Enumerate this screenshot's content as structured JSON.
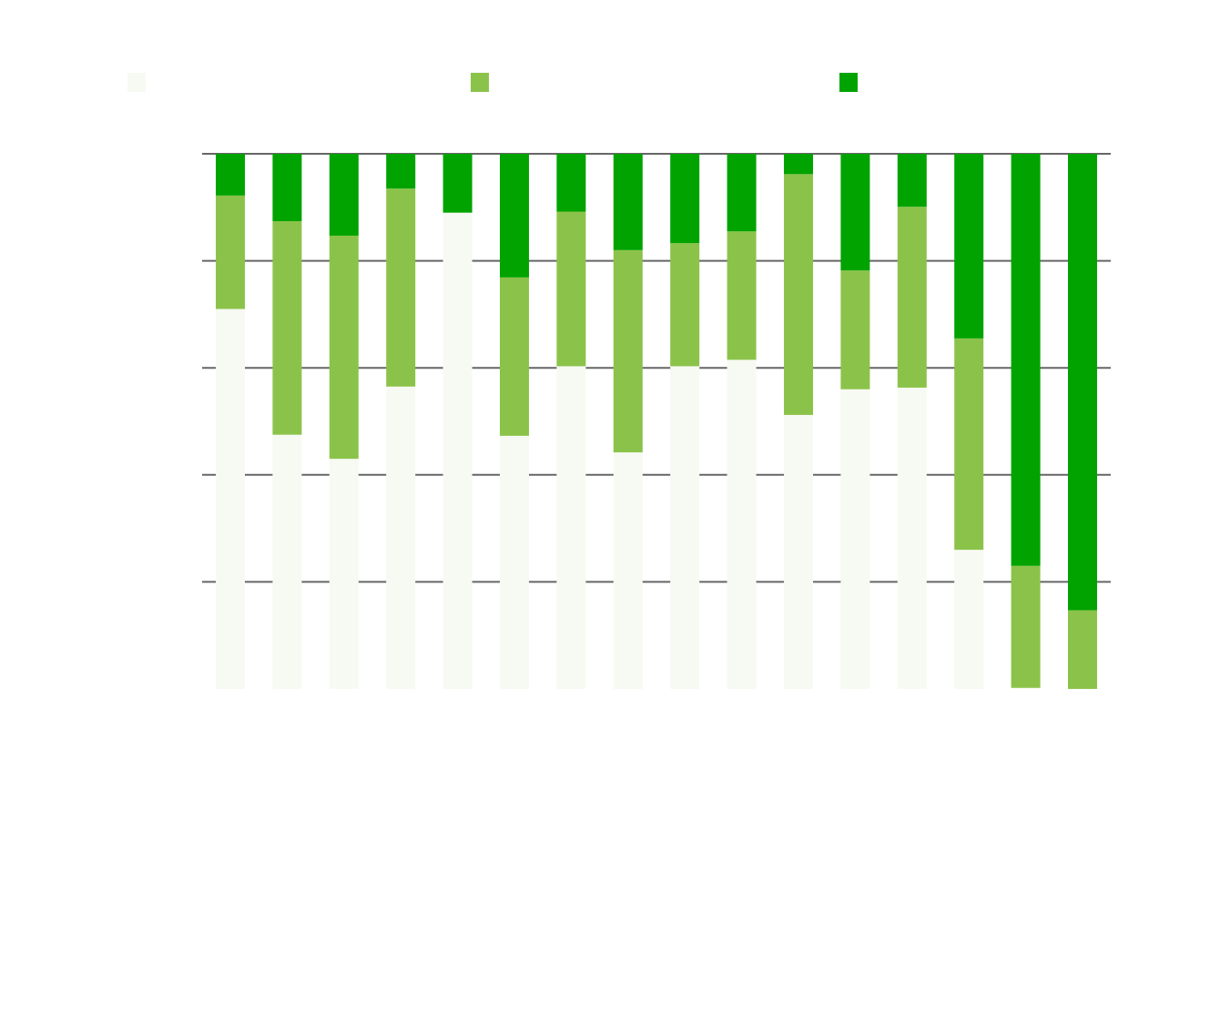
{
  "chart_data": {
    "type": "bar",
    "stacked": true,
    "normalized_to_percent": true,
    "title": "",
    "xlabel": "",
    "ylabel": "",
    "ylim": [
      0,
      100
    ],
    "y_ticks": [
      0,
      20,
      40,
      60,
      80,
      100
    ],
    "y_tick_labels_shown": false,
    "x_tick_labels_shown": false,
    "grid": "horizontal",
    "legend_position": "top",
    "categories": [
      "",
      "",
      "",
      "",
      "",
      "",
      "",
      "",
      "",
      "",
      "",
      "",
      "",
      "",
      "",
      ""
    ],
    "series": [
      {
        "color": "#f7faf2",
        "values": [
          71,
          47.5,
          43,
          56.5,
          89,
          47.3,
          60.3,
          44.2,
          60.3,
          61.5,
          51.2,
          56,
          56.3,
          26,
          0.2,
          0
        ]
      },
      {
        "color": "#8bc34a",
        "values": [
          21.2,
          39.9,
          41.7,
          37,
          0,
          29.6,
          28.9,
          37.8,
          23,
          24,
          45,
          22.2,
          33.8,
          39.5,
          22.8,
          14.7
        ]
      },
      {
        "color": "#00a300",
        "values": [
          7.8,
          12.6,
          15.3,
          6.5,
          11,
          23.1,
          10.8,
          18,
          16.7,
          14.5,
          3.8,
          21.8,
          9.9,
          34.5,
          77,
          85.3
        ]
      }
    ]
  }
}
